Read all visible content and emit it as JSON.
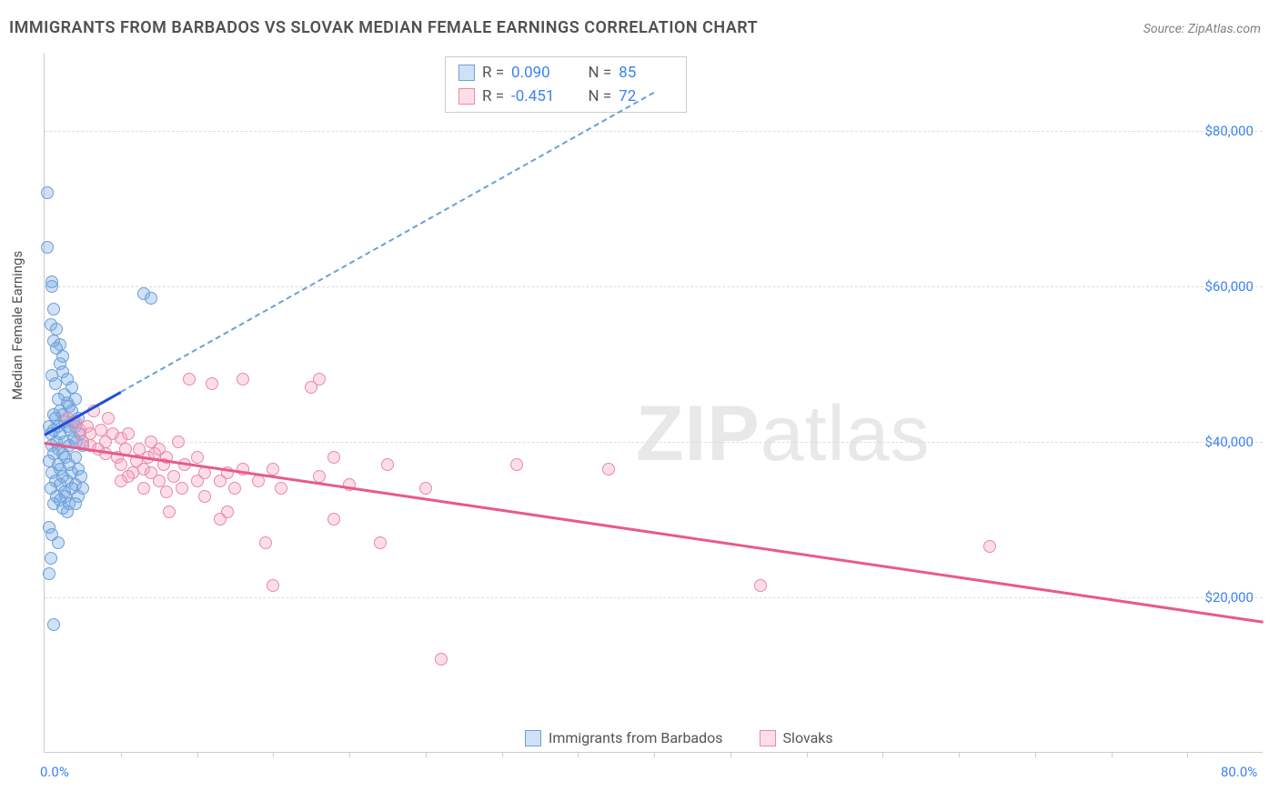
{
  "title": "IMMIGRANTS FROM BARBADOS VS SLOVAK MEDIAN FEMALE EARNINGS CORRELATION CHART",
  "source": "Source: ZipAtlas.com",
  "yaxis_title": "Median Female Earnings",
  "watermark_zip": "ZIP",
  "watermark_atlas": "atlas",
  "chart": {
    "type": "scatter",
    "background_color": "#ffffff",
    "grid_color": "#dddddd",
    "axis_color": "#cccccc",
    "tick_label_color": "#3b82f6",
    "tick_label_fontsize": 15,
    "xlim": [
      0,
      80
    ],
    "ylim": [
      0,
      90000
    ],
    "ytick_step": 20000,
    "yticks": [
      {
        "v": 20000,
        "label": "$20,000"
      },
      {
        "v": 40000,
        "label": "$40,000"
      },
      {
        "v": 60000,
        "label": "$60,000"
      },
      {
        "v": 80000,
        "label": "$80,000"
      }
    ],
    "xticks_minor": [
      5,
      10,
      15,
      20,
      25,
      30,
      35,
      40,
      45,
      50,
      55,
      60,
      65,
      70,
      75
    ],
    "x_start_label": "0.0%",
    "x_end_label": "80.0%",
    "marker_radius": 7,
    "marker_border_width": 1.5,
    "series": [
      {
        "name": "Immigrants from Barbados",
        "fill": "rgba(120,170,230,0.35)",
        "stroke": "#6b9fd8",
        "trend_color": "#1e4fd8",
        "trend_dash_color": "#6b9fd8",
        "R": "0.090",
        "N": "85",
        "trend": {
          "x1": 0,
          "y1": 41000,
          "x2": 40,
          "y2": 85000,
          "solid_until_x": 5
        },
        "points": [
          [
            0.2,
            72000
          ],
          [
            0.2,
            65000
          ],
          [
            0.5,
            60500
          ],
          [
            0.5,
            60000
          ],
          [
            0.6,
            57000
          ],
          [
            0.4,
            55000
          ],
          [
            0.8,
            54500
          ],
          [
            0.6,
            53000
          ],
          [
            1.0,
            52500
          ],
          [
            0.8,
            52000
          ],
          [
            1.2,
            51000
          ],
          [
            1.0,
            50000
          ],
          [
            1.2,
            49000
          ],
          [
            0.5,
            48500
          ],
          [
            1.5,
            48000
          ],
          [
            0.7,
            47500
          ],
          [
            1.8,
            47000
          ],
          [
            1.3,
            46000
          ],
          [
            0.9,
            45500
          ],
          [
            1.5,
            45000
          ],
          [
            2.0,
            45500
          ],
          [
            1.6,
            44500
          ],
          [
            1.0,
            44000
          ],
          [
            0.6,
            43500
          ],
          [
            1.8,
            44000
          ],
          [
            1.2,
            43500
          ],
          [
            2.2,
            43000
          ],
          [
            0.7,
            43000
          ],
          [
            1.9,
            42500
          ],
          [
            1.3,
            42500
          ],
          [
            0.3,
            42000
          ],
          [
            0.9,
            42000
          ],
          [
            2.0,
            42000
          ],
          [
            1.5,
            42000
          ],
          [
            0.6,
            41500
          ],
          [
            1.7,
            41500
          ],
          [
            2.3,
            41000
          ],
          [
            0.4,
            41000
          ],
          [
            1.0,
            41000
          ],
          [
            1.9,
            40500
          ],
          [
            0.8,
            40000
          ],
          [
            1.3,
            40000
          ],
          [
            2.1,
            40000
          ],
          [
            0.5,
            39500
          ],
          [
            1.6,
            39500
          ],
          [
            0.9,
            39000
          ],
          [
            2.5,
            39500
          ],
          [
            1.2,
            38500
          ],
          [
            0.6,
            38500
          ],
          [
            2.0,
            38000
          ],
          [
            1.4,
            38000
          ],
          [
            0.3,
            37500
          ],
          [
            0.9,
            37000
          ],
          [
            1.6,
            37000
          ],
          [
            1.0,
            36500
          ],
          [
            2.2,
            36500
          ],
          [
            0.5,
            36000
          ],
          [
            1.8,
            36000
          ],
          [
            1.2,
            35500
          ],
          [
            2.4,
            35500
          ],
          [
            0.7,
            35000
          ],
          [
            1.5,
            35000
          ],
          [
            1.0,
            34500
          ],
          [
            2.0,
            34500
          ],
          [
            0.4,
            34000
          ],
          [
            1.3,
            33500
          ],
          [
            1.8,
            34000
          ],
          [
            2.5,
            34000
          ],
          [
            0.8,
            33000
          ],
          [
            1.4,
            33000
          ],
          [
            1.0,
            32500
          ],
          [
            2.2,
            33000
          ],
          [
            0.6,
            32000
          ],
          [
            1.6,
            32000
          ],
          [
            1.2,
            31500
          ],
          [
            2.0,
            32000
          ],
          [
            1.5,
            31000
          ],
          [
            0.3,
            29000
          ],
          [
            0.5,
            28000
          ],
          [
            0.9,
            27000
          ],
          [
            0.4,
            25000
          ],
          [
            0.3,
            23000
          ],
          [
            0.6,
            16500
          ],
          [
            6.5,
            59000
          ],
          [
            7.0,
            58500
          ]
        ]
      },
      {
        "name": "Slovaks",
        "fill": "rgba(250,160,190,0.35)",
        "stroke": "#e889a7",
        "trend_color": "#e85a8a",
        "R": "-0.451",
        "N": "72",
        "trend": {
          "x1": 0,
          "y1": 40000,
          "x2": 80,
          "y2": 17000,
          "solid_until_x": 80
        },
        "points": [
          [
            1.5,
            43000
          ],
          [
            2.0,
            42500
          ],
          [
            2.3,
            41500
          ],
          [
            2.8,
            42000
          ],
          [
            3.0,
            39500
          ],
          [
            3.2,
            44000
          ],
          [
            3.0,
            41000
          ],
          [
            2.5,
            40000
          ],
          [
            3.5,
            39000
          ],
          [
            3.7,
            41500
          ],
          [
            4.0,
            38500
          ],
          [
            4.2,
            43000
          ],
          [
            4.0,
            40000
          ],
          [
            4.5,
            41000
          ],
          [
            4.8,
            38000
          ],
          [
            5.0,
            37000
          ],
          [
            5.0,
            40500
          ],
          [
            5.3,
            39000
          ],
          [
            5.5,
            41000
          ],
          [
            5.8,
            36000
          ],
          [
            6.0,
            37500
          ],
          [
            5.5,
            35500
          ],
          [
            6.2,
            39000
          ],
          [
            6.5,
            36500
          ],
          [
            5.0,
            35000
          ],
          [
            6.8,
            38000
          ],
          [
            7.0,
            36000
          ],
          [
            6.5,
            34000
          ],
          [
            7.2,
            38500
          ],
          [
            7.5,
            35000
          ],
          [
            7.0,
            40000
          ],
          [
            7.8,
            37000
          ],
          [
            8.0,
            33500
          ],
          [
            7.5,
            39000
          ],
          [
            8.5,
            35500
          ],
          [
            8.2,
            31000
          ],
          [
            8.0,
            38000
          ],
          [
            9.0,
            34000
          ],
          [
            9.2,
            37000
          ],
          [
            8.8,
            40000
          ],
          [
            9.5,
            48000
          ],
          [
            11.0,
            47500
          ],
          [
            10.0,
            38000
          ],
          [
            10.0,
            35000
          ],
          [
            10.5,
            36000
          ],
          [
            10.5,
            33000
          ],
          [
            11.5,
            35000
          ],
          [
            12.0,
            36000
          ],
          [
            11.5,
            30000
          ],
          [
            12.5,
            34000
          ],
          [
            13.0,
            48000
          ],
          [
            13.0,
            36500
          ],
          [
            12.0,
            31000
          ],
          [
            14.0,
            35000
          ],
          [
            14.5,
            27000
          ],
          [
            15.0,
            36500
          ],
          [
            15.0,
            21500
          ],
          [
            15.5,
            34000
          ],
          [
            18.0,
            35500
          ],
          [
            18.0,
            48000
          ],
          [
            17.5,
            47000
          ],
          [
            19.0,
            38000
          ],
          [
            20.0,
            34500
          ],
          [
            19.0,
            30000
          ],
          [
            22.5,
            37000
          ],
          [
            22.0,
            27000
          ],
          [
            25.0,
            34000
          ],
          [
            26.0,
            12000
          ],
          [
            31.0,
            37000
          ],
          [
            37.0,
            36500
          ],
          [
            47.0,
            21500
          ],
          [
            62.0,
            26500
          ]
        ]
      }
    ]
  },
  "legend": {
    "series1_label": "Immigrants from Barbados",
    "series2_label": "Slovaks"
  }
}
